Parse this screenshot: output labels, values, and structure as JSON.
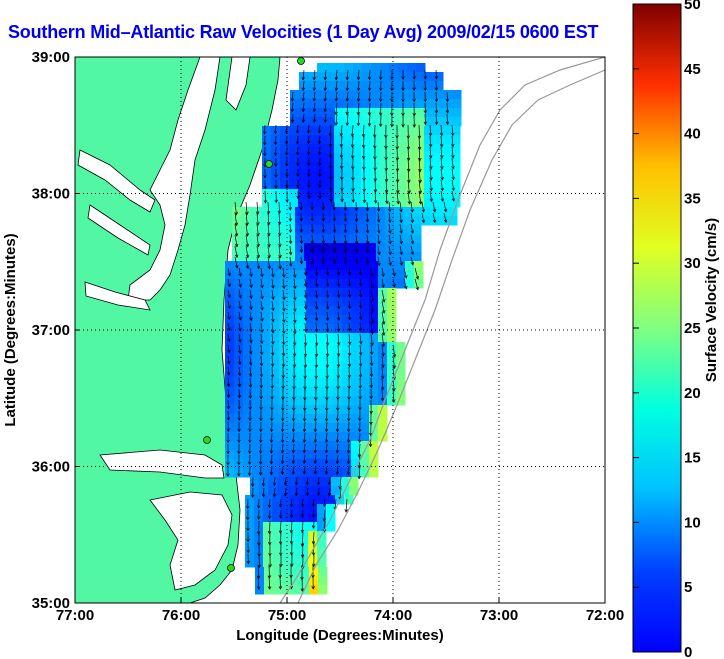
{
  "title": "Southern Mid–Atlantic Raw Velocities (1 Day Avg) 2009/02/15 0600 EST",
  "map": {
    "xlabel": "Longitude (Degrees:Minutes)",
    "ylabel": "Latitude (Degrees:Minutes)",
    "x_ticks": [
      "77:00",
      "76:00",
      "75:00",
      "74:00",
      "73:00",
      "72:00"
    ],
    "y_ticks": [
      "39:00",
      "38:00",
      "37:00",
      "36:00",
      "35:00"
    ],
    "colors": {
      "land": "#52f7a4",
      "ocean": "#ffffff",
      "bathymetry": "#999999"
    },
    "grid": true
  },
  "colorbar": {
    "label": "Surface Velocity (cm/s)",
    "units": "cm/s",
    "range": [
      0,
      50
    ],
    "ticks": [
      "0",
      "5",
      "10",
      "15",
      "20",
      "25",
      "30",
      "35",
      "40",
      "45",
      "50"
    ],
    "colormap": "jet"
  },
  "sites": [
    "site-1",
    "site-2",
    "site-3",
    "site-4"
  ]
}
